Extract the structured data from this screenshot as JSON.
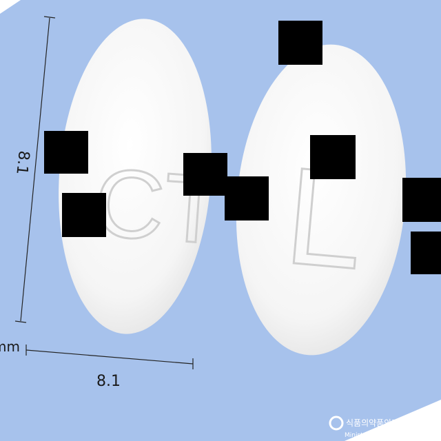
{
  "photo": {
    "background_color": "#a7c2ec",
    "tablet_color": "#f7f7f7"
  },
  "dimensions": {
    "height_label": "8.1",
    "width_label": "8.1",
    "unit_label": "mm"
  },
  "tablets": {
    "front_imprint": "CT",
    "back_imprint": "L"
  },
  "watermark": {
    "korean_text": "식품의약품안전처",
    "english_text": "Ministry of Food and Drug Safety"
  }
}
